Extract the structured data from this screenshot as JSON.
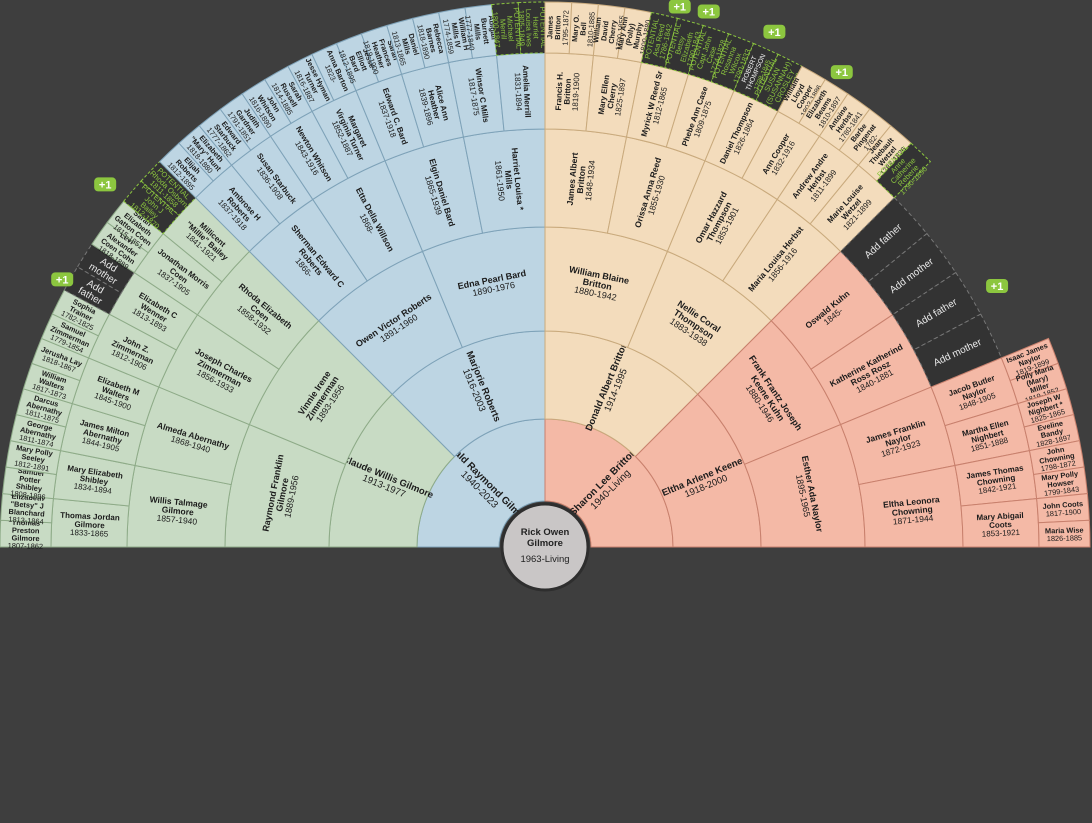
{
  "colors": {
    "background": "#3e3e3e",
    "blue": "#bdd5e3",
    "blue_stroke": "#7ea2b8",
    "green": "#c8dbc4",
    "green_stroke": "#8eab88",
    "tan": "#f3dcbc",
    "tan_stroke": "#c9aa7d",
    "salmon": "#f4b9a6",
    "salmon_stroke": "#c8806d",
    "placeholder": "#333333",
    "placeholder_stroke": "#777777",
    "badge": "#8cc63f"
  },
  "root": {
    "name": "Rick Owen\nGilmore",
    "dates": "1963-Living"
  },
  "generations": [
    [
      {
        "name": "Gerald Raymond Gilmore",
        "dates": "1940-2023",
        "branch": "blue"
      },
      {
        "name": "Sharon Lee Britton",
        "dates": "1940-Living",
        "branch": "salmon"
      }
    ],
    [
      {
        "name": "Claude Willis Gilmore",
        "dates": "1913-1977",
        "branch": "green"
      },
      {
        "name": "Marjorie Roberts",
        "dates": "1916-2003",
        "branch": "blue"
      },
      {
        "name": "Donald Albert Britton",
        "dates": "1914-1995",
        "branch": "tan"
      },
      {
        "name": "Eltha Arlene Keene",
        "dates": "1918-2000",
        "branch": "salmon"
      }
    ],
    [
      {
        "name": "Raymond Franklin Gilmore",
        "dates": "1889-1956",
        "branch": "green"
      },
      {
        "name": "Vinnie Irene Zimmerman",
        "dates": "1893-1956",
        "branch": "green"
      },
      {
        "name": "Owen Victor Roberts",
        "dates": "1891-1960",
        "branch": "blue"
      },
      {
        "name": "Edna Pearl Bard",
        "dates": "1890-1976",
        "branch": "blue"
      },
      {
        "name": "William Blaine Britton",
        "dates": "1880-1942",
        "branch": "tan"
      },
      {
        "name": "Nellie Coral Thompson",
        "dates": "1883-1938",
        "branch": "tan"
      },
      {
        "name": "Frank Frantz Joseph Keene Kuhn",
        "dates": "1880-1946",
        "branch": "salmon"
      },
      {
        "name": "Esther Ada Naylor",
        "dates": "1895-1965",
        "branch": "salmon"
      }
    ],
    [
      {
        "name": "Willis Talmage Gilmore",
        "dates": "1857-1940",
        "branch": "green"
      },
      {
        "name": "Almeda Abernathy",
        "dates": "1868-1940",
        "branch": "green"
      },
      {
        "name": "Joseph Charles Zimmerman",
        "dates": "1856-1933",
        "branch": "green"
      },
      {
        "name": "Rhoda Elizabeth Coen",
        "dates": "1858-1932",
        "branch": "green"
      },
      {
        "name": "Sherman Edward C Roberts",
        "dates": "1866-",
        "branch": "blue"
      },
      {
        "name": "Etta Della Willson",
        "dates": "1868-",
        "branch": "blue"
      },
      {
        "name": "Elgin Daniel Bard",
        "dates": "1865-1939",
        "branch": "blue"
      },
      {
        "name": "Harriet Louisa * Mills",
        "dates": "1861-1950",
        "branch": "blue"
      },
      {
        "name": "James Albert Britton",
        "dates": "1848-1934",
        "branch": "tan"
      },
      {
        "name": "Orissa Anna Reed",
        "dates": "1855-1930",
        "branch": "tan"
      },
      {
        "name": "Omar Hazzard Thompson",
        "dates": "1853-1901",
        "branch": "tan"
      },
      {
        "name": "Maria Louisa Herbst",
        "dates": "1856-1916",
        "branch": "tan"
      },
      {
        "name": "Oswald Kuhn",
        "dates": "1845-",
        "branch": "salmon"
      },
      {
        "name": "Katherine Katherind Ross Rosz",
        "dates": "1840-1881",
        "branch": "salmon"
      },
      {
        "name": "James Franklin Naylor",
        "dates": "1872-1923",
        "branch": "salmon"
      },
      {
        "name": "Eltha Leonora Chowning",
        "dates": "1871-1944",
        "branch": "salmon"
      }
    ],
    [
      {
        "name": "Thomas Jordan Gilmore",
        "dates": "1833-1865",
        "branch": "green"
      },
      {
        "name": "Mary Elizabeth Shibley",
        "dates": "1834-1894",
        "branch": "green"
      },
      {
        "name": "James Milton Abernathy",
        "dates": "1844-1905",
        "branch": "green"
      },
      {
        "name": "Elizabeth M Walters",
        "dates": "1845-1900",
        "branch": "green"
      },
      {
        "name": "John Z. Zimmerman",
        "dates": "1812-1906",
        "branch": "green"
      },
      {
        "name": "Elizabeth C Wenner",
        "dates": "1813-1893",
        "branch": "green"
      },
      {
        "name": "Jonathan Morris Coen",
        "dates": "1837-1905",
        "branch": "green"
      },
      {
        "name": "Millicent \"Millie\" Bailey",
        "dates": "1841-1921",
        "branch": "green"
      },
      {
        "name": "Ambrose H Roberts",
        "dates": "1837-1918",
        "branch": "blue"
      },
      {
        "name": "Susan Starbuck",
        "dates": "1836-1908",
        "branch": "blue"
      },
      {
        "name": "Newton Whitson",
        "dates": "1843-1916",
        "branch": "blue"
      },
      {
        "name": "Margaret Virginia Turner",
        "dates": "1852-1887",
        "branch": "blue"
      },
      {
        "name": "Edward C. Bard",
        "dates": "1837-1918",
        "branch": "blue"
      },
      {
        "name": "Alice Ann Heather",
        "dates": "1839-1896",
        "branch": "blue"
      },
      {
        "name": "Winsor C Mills",
        "dates": "1817-1875",
        "branch": "blue"
      },
      {
        "name": "Amelia Merrill",
        "dates": "1831-1894",
        "branch": "blue"
      },
      {
        "name": "Francis H. Britton",
        "dates": "1819-1900",
        "branch": "tan"
      },
      {
        "name": "Mary Ellen Cherry",
        "dates": "1825-1897",
        "branch": "tan"
      },
      {
        "name": "Myrick W Reed Sr",
        "dates": "1812-1865",
        "branch": "tan"
      },
      {
        "name": "Phebe Ann Case",
        "dates": "1809-1875",
        "branch": "tan"
      },
      {
        "name": "Daniel Thompson",
        "dates": "1826-1864",
        "branch": "tan"
      },
      {
        "name": "Ann Cooper",
        "dates": "1832-1916",
        "branch": "tan"
      },
      {
        "name": "Andrew Andre Herbst",
        "dates": "1811-1899",
        "branch": "tan"
      },
      {
        "name": "Marie Louise Wetzel",
        "dates": "1821-1899",
        "branch": "tan"
      },
      {
        "name": "Add father",
        "dates": "",
        "branch": "placeholder"
      },
      {
        "name": "Add mother",
        "dates": "",
        "branch": "placeholder"
      },
      {
        "name": "Add father",
        "dates": "",
        "branch": "placeholder"
      },
      {
        "name": "Add mother",
        "dates": "",
        "branch": "placeholder"
      },
      {
        "name": "Jacob Butler Naylor",
        "dates": "1848-1905",
        "branch": "salmon"
      },
      {
        "name": "Martha Ellen Nighbert",
        "dates": "1851-1888",
        "branch": "salmon"
      },
      {
        "name": "James Thomas Chowning",
        "dates": "1842-1921",
        "branch": "salmon"
      },
      {
        "name": "Mary Abigail Coots",
        "dates": "1853-1921",
        "branch": "salmon"
      }
    ],
    [
      {
        "name": "Thomas Preston Gilmore",
        "dates": "1807-1862",
        "branch": "green"
      },
      {
        "name": "Elizabeth \"Betsy\" J Blanchard",
        "dates": "1813-1864",
        "branch": "green"
      },
      {
        "name": "Samuel Potter Shibley",
        "dates": "1808-1896",
        "branch": "green"
      },
      {
        "name": "Mary Polly Seeley",
        "dates": "1812-1891",
        "branch": "green"
      },
      {
        "name": "George Abernathy",
        "dates": "1811-1874",
        "branch": "green"
      },
      {
        "name": "Darcus Abernathy",
        "dates": "1811-1875",
        "branch": "green"
      },
      {
        "name": "William Walters",
        "dates": "1817-1873",
        "branch": "green"
      },
      {
        "name": "Jerusha Lay",
        "dates": "1818-1867",
        "branch": "green"
      },
      {
        "name": "Samuel Zimmerman",
        "dates": "1779-1854",
        "branch": "green"
      },
      {
        "name": "Sophia Trainer",
        "dates": "1782-1825",
        "branch": "green"
      },
      {
        "name": "Add father",
        "dates": "",
        "branch": "placeholder"
      },
      {
        "name": "Add mother",
        "dates": "",
        "branch": "placeholder"
      },
      {
        "name": "Levi Alexander Coen Cohn",
        "dates": "1818-1889",
        "branch": "green"
      },
      {
        "name": "Sarah Elizabeth Gatton Coen",
        "dates": "1815-1851",
        "branch": "green"
      },
      {
        "name": "POTENTIAL John J Bailey",
        "dates": "1812-1870",
        "branch": "potential"
      },
      {
        "name": "POTENTIAL Rhoda Osborn",
        "dates": "1811-1858",
        "branch": "potential"
      },
      {
        "name": "Elijah Roberts",
        "dates": "1812-1895",
        "branch": "blue"
      },
      {
        "name": "Elizabeth \"Mary\" Hunt",
        "dates": "1818-1880",
        "branch": "blue"
      },
      {
        "name": "Edward Starbuck",
        "dates": "1777-1862",
        "branch": "blue"
      },
      {
        "name": "Judith Gardner",
        "dates": "1791-1851",
        "branch": "blue"
      },
      {
        "name": "John Whitson",
        "dates": "1816-1890",
        "branch": "blue"
      },
      {
        "name": "Sarah Russell",
        "dates": "1814-1885",
        "branch": "blue"
      },
      {
        "name": "Jesse Hyman Turner",
        "dates": "1816-1887",
        "branch": "blue"
      },
      {
        "name": "Anna Barton",
        "dates": "1823-",
        "branch": "blue"
      },
      {
        "name": "Jesse Elliott Bard",
        "dates": "1812-1895",
        "branch": "blue"
      },
      {
        "name": "Sarah Frances Heather",
        "dates": "1819-1900",
        "branch": "blue"
      },
      {
        "name": "Daniel Mills",
        "dates": "1813-1865",
        "branch": "blue"
      },
      {
        "name": "Rebecca Barnes",
        "dates": "1818-1890",
        "branch": "blue"
      },
      {
        "name": "William H Mills IV",
        "dates": "1774-1859",
        "branch": "blue"
      },
      {
        "name": "Abigail * Burnett Mills",
        "dates": "1777-1840",
        "branch": "blue"
      },
      {
        "name": "POTENTIAL Michael Merrill",
        "dates": "1800-1847",
        "branch": "potential"
      },
      {
        "name": "POTENTIAL Harriet Louisa Ives",
        "dates": "1805-1849",
        "branch": "potential"
      },
      {
        "name": "James Britton",
        "dates": "1795-1872",
        "branch": "tan"
      },
      {
        "name": "Mary O. Bell",
        "dates": "1810-1885",
        "branch": "tan"
      },
      {
        "name": "William David Cherry",
        "dates": "1790-1855",
        "branch": "tan"
      },
      {
        "name": "Mary Ann (Polly) Murphy",
        "dates": "1800-1880",
        "branch": "tan"
      },
      {
        "name": "POTENTIAL Asa Reed",
        "dates": "1786-1842",
        "branch": "potential"
      },
      {
        "name": "POTENTIAL Betsy Elizabeth",
        "dates": "1790-1843",
        "branch": "potential"
      },
      {
        "name": "POTENTIAL Capt John Case",
        "dates": "1774-1828",
        "branch": "potential"
      },
      {
        "name": "POTENTIAL Rosanna Wilcox",
        "dates": "1790-1833",
        "branch": "potential"
      },
      {
        "name": "ROBERT THOMPSON",
        "dates": "1798-1845",
        "branch": "potential-dark"
      },
      {
        "name": "POTENTIAL SUSAN (SUSANNAH) CROSLEY",
        "dates": "1800-1838",
        "branch": "potential"
      },
      {
        "name": "William Lloyd Cooper",
        "dates": "1803-1886",
        "branch": "tan"
      },
      {
        "name": "Elizabeth Beams",
        "dates": "1810-1897",
        "branch": "tan"
      },
      {
        "name": "Antoine Herbst",
        "dates": "1780-1841",
        "branch": "tan"
      },
      {
        "name": "Barbe Pingenat",
        "dates": "1782-",
        "branch": "tan"
      },
      {
        "name": "Jean Thiebault Wetzel",
        "dates": "1788-1826",
        "branch": "tan"
      },
      {
        "name": "POTENTIAL Anne Catherine Reberie",
        "dates": "1790-1890",
        "branch": "potential"
      },
      {
        "name": "",
        "dates": "",
        "branch": "placeholder-empty"
      },
      {
        "name": "",
        "dates": "",
        "branch": "placeholder-empty"
      },
      {
        "name": "",
        "dates": "",
        "branch": "placeholder-empty"
      },
      {
        "name": "",
        "dates": "",
        "branch": "placeholder-empty"
      },
      {
        "name": "",
        "dates": "",
        "branch": "placeholder-empty"
      },
      {
        "name": "",
        "dates": "",
        "branch": "placeholder-empty"
      },
      {
        "name": "",
        "dates": "",
        "branch": "placeholder-empty"
      },
      {
        "name": "",
        "dates": "",
        "branch": "placeholder-empty"
      },
      {
        "name": "Isaac James Naylor",
        "dates": "1819-1899",
        "branch": "salmon"
      },
      {
        "name": "Polly Maria (Mary) Miller",
        "dates": "1819-1852",
        "branch": "salmon"
      },
      {
        "name": "Joseph W Nighbert *",
        "dates": "1825-1865",
        "branch": "salmon"
      },
      {
        "name": "Eveline Bandy",
        "dates": "1828-1897",
        "branch": "salmon"
      },
      {
        "name": "John Chowning",
        "dates": "1798-1872",
        "branch": "salmon"
      },
      {
        "name": "Mary Polly Howser",
        "dates": "1799-1843",
        "branch": "salmon"
      },
      {
        "name": "John Coots",
        "dates": "1817-1900",
        "branch": "salmon"
      },
      {
        "name": "Maria Wise",
        "dates": "1826-1885",
        "branch": "salmon"
      }
    ]
  ],
  "badges": [
    {
      "label": "+1"
    },
    {
      "label": "+1"
    },
    {
      "label": "+1"
    },
    {
      "label": "+1"
    },
    {
      "label": "+1"
    },
    {
      "label": "+1"
    },
    {
      "label": "+1"
    },
    {
      "label": "+1"
    },
    {
      "label": "+1"
    }
  ]
}
